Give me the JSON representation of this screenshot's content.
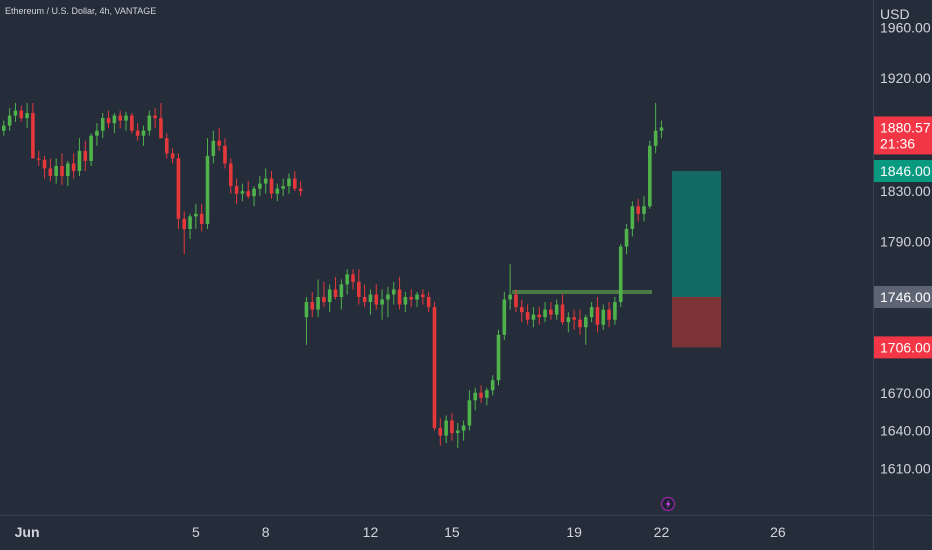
{
  "symbol": {
    "title": "Ethereum / U.S. Dollar, 4h, VANTAGE"
  },
  "price_axis": {
    "currency": "USD",
    "ticks": [
      {
        "label": "1960.00",
        "value": 1960
      },
      {
        "label": "1920.00",
        "value": 1920
      },
      {
        "label": "1830.00",
        "value": 1830
      },
      {
        "label": "1790.00",
        "value": 1790
      },
      {
        "label": "1670.00",
        "value": 1670
      },
      {
        "label": "1640.00",
        "value": 1640
      },
      {
        "label": "1610.00",
        "value": 1610
      }
    ],
    "current_price": {
      "label": "1880.57",
      "value": 1880.57,
      "countdown": "21:36",
      "color": "#f23645"
    },
    "target_price": {
      "label": "1846.00",
      "value": 1846,
      "color": "#089981"
    },
    "entry_price": {
      "label": "1746.00",
      "value": 1746,
      "color": "#5d6575"
    },
    "stop_price": {
      "label": "1706.00",
      "value": 1706,
      "color": "#f23645"
    }
  },
  "time_axis": {
    "labels": [
      {
        "label": "Jun",
        "bar": 4,
        "bold": true
      },
      {
        "label": "5",
        "bar": 33
      },
      {
        "label": "8",
        "bar": 45
      },
      {
        "label": "12",
        "bar": 63
      },
      {
        "label": "15",
        "bar": 77
      },
      {
        "label": "19",
        "bar": 98
      },
      {
        "label": "22",
        "bar": 113
      },
      {
        "label": "26",
        "bar": 133
      }
    ]
  },
  "position_tool": {
    "entry": 1746,
    "target": 1846,
    "stop": 1706,
    "profit_color": "#136a67",
    "loss_color": "#7c3437"
  },
  "horizontal_line": {
    "price": 1750,
    "from_bar": 88,
    "to_bar": 111,
    "color": "#4b7a45"
  },
  "colors": {
    "up": "#4fb24a",
    "down": "#e5383b",
    "background": "#252d3b",
    "axis_text": "#d1d4dc"
  },
  "icons": {
    "event_marker": "lightning-icon"
  },
  "chart_data": {
    "type": "candlestick",
    "timeframe": "4h",
    "bars": [
      {
        "o": 1878,
        "h": 1886,
        "l": 1874,
        "c": 1882
      },
      {
        "o": 1882,
        "h": 1896,
        "l": 1878,
        "c": 1890
      },
      {
        "o": 1890,
        "h": 1900,
        "l": 1885,
        "c": 1894
      },
      {
        "o": 1894,
        "h": 1898,
        "l": 1885,
        "c": 1888
      },
      {
        "o": 1888,
        "h": 1900,
        "l": 1880,
        "c": 1892
      },
      {
        "o": 1892,
        "h": 1900,
        "l": 1878,
        "c": 1856
      },
      {
        "o": 1856,
        "h": 1862,
        "l": 1850,
        "c": 1855
      },
      {
        "o": 1855,
        "h": 1858,
        "l": 1840,
        "c": 1848
      },
      {
        "o": 1848,
        "h": 1856,
        "l": 1838,
        "c": 1842
      },
      {
        "o": 1842,
        "h": 1856,
        "l": 1836,
        "c": 1850
      },
      {
        "o": 1850,
        "h": 1860,
        "l": 1835,
        "c": 1842
      },
      {
        "o": 1842,
        "h": 1854,
        "l": 1834,
        "c": 1852
      },
      {
        "o": 1852,
        "h": 1860,
        "l": 1840,
        "c": 1846
      },
      {
        "o": 1846,
        "h": 1872,
        "l": 1842,
        "c": 1862
      },
      {
        "o": 1862,
        "h": 1870,
        "l": 1846,
        "c": 1854
      },
      {
        "o": 1854,
        "h": 1876,
        "l": 1850,
        "c": 1874
      },
      {
        "o": 1874,
        "h": 1884,
        "l": 1866,
        "c": 1878
      },
      {
        "o": 1878,
        "h": 1892,
        "l": 1872,
        "c": 1888
      },
      {
        "o": 1888,
        "h": 1894,
        "l": 1880,
        "c": 1884
      },
      {
        "o": 1884,
        "h": 1892,
        "l": 1876,
        "c": 1890
      },
      {
        "o": 1890,
        "h": 1894,
        "l": 1880,
        "c": 1886
      },
      {
        "o": 1886,
        "h": 1893,
        "l": 1878,
        "c": 1890
      },
      {
        "o": 1890,
        "h": 1892,
        "l": 1876,
        "c": 1878
      },
      {
        "o": 1878,
        "h": 1884,
        "l": 1870,
        "c": 1874
      },
      {
        "o": 1874,
        "h": 1882,
        "l": 1866,
        "c": 1878
      },
      {
        "o": 1878,
        "h": 1894,
        "l": 1874,
        "c": 1890
      },
      {
        "o": 1890,
        "h": 1896,
        "l": 1880,
        "c": 1888
      },
      {
        "o": 1888,
        "h": 1900,
        "l": 1880,
        "c": 1872
      },
      {
        "o": 1872,
        "h": 1876,
        "l": 1856,
        "c": 1860
      },
      {
        "o": 1860,
        "h": 1864,
        "l": 1852,
        "c": 1856
      },
      {
        "o": 1856,
        "h": 1860,
        "l": 1800,
        "c": 1808
      },
      {
        "o": 1808,
        "h": 1814,
        "l": 1780,
        "c": 1800
      },
      {
        "o": 1800,
        "h": 1812,
        "l": 1792,
        "c": 1810
      },
      {
        "o": 1810,
        "h": 1820,
        "l": 1800,
        "c": 1812
      },
      {
        "o": 1812,
        "h": 1820,
        "l": 1798,
        "c": 1804
      },
      {
        "o": 1804,
        "h": 1872,
        "l": 1800,
        "c": 1858
      },
      {
        "o": 1858,
        "h": 1878,
        "l": 1852,
        "c": 1870
      },
      {
        "o": 1870,
        "h": 1880,
        "l": 1862,
        "c": 1866
      },
      {
        "o": 1866,
        "h": 1872,
        "l": 1848,
        "c": 1852
      },
      {
        "o": 1852,
        "h": 1856,
        "l": 1828,
        "c": 1834
      },
      {
        "o": 1834,
        "h": 1840,
        "l": 1820,
        "c": 1828
      },
      {
        "o": 1828,
        "h": 1836,
        "l": 1822,
        "c": 1830
      },
      {
        "o": 1830,
        "h": 1838,
        "l": 1824,
        "c": 1826
      },
      {
        "o": 1826,
        "h": 1834,
        "l": 1818,
        "c": 1832
      },
      {
        "o": 1832,
        "h": 1842,
        "l": 1826,
        "c": 1836
      },
      {
        "o": 1836,
        "h": 1848,
        "l": 1828,
        "c": 1840
      },
      {
        "o": 1840,
        "h": 1846,
        "l": 1824,
        "c": 1828
      },
      {
        "o": 1828,
        "h": 1836,
        "l": 1822,
        "c": 1832
      },
      {
        "o": 1832,
        "h": 1840,
        "l": 1826,
        "c": 1834
      },
      {
        "o": 1834,
        "h": 1844,
        "l": 1828,
        "c": 1840
      },
      {
        "o": 1840,
        "h": 1846,
        "l": 1830,
        "c": 1832
      },
      {
        "o": 1832,
        "h": 1838,
        "l": 1826,
        "c": 1830
      },
      {
        "o": 1730,
        "h": 1746,
        "l": 1708,
        "c": 1742
      },
      {
        "o": 1742,
        "h": 1750,
        "l": 1730,
        "c": 1736
      },
      {
        "o": 1736,
        "h": 1760,
        "l": 1730,
        "c": 1746
      },
      {
        "o": 1746,
        "h": 1758,
        "l": 1738,
        "c": 1742
      },
      {
        "o": 1742,
        "h": 1756,
        "l": 1734,
        "c": 1752
      },
      {
        "o": 1752,
        "h": 1762,
        "l": 1744,
        "c": 1746
      },
      {
        "o": 1746,
        "h": 1760,
        "l": 1736,
        "c": 1756
      },
      {
        "o": 1756,
        "h": 1768,
        "l": 1748,
        "c": 1764
      },
      {
        "o": 1764,
        "h": 1768,
        "l": 1752,
        "c": 1758
      },
      {
        "o": 1758,
        "h": 1768,
        "l": 1740,
        "c": 1746
      },
      {
        "o": 1746,
        "h": 1756,
        "l": 1738,
        "c": 1742
      },
      {
        "o": 1742,
        "h": 1752,
        "l": 1732,
        "c": 1748
      },
      {
        "o": 1748,
        "h": 1756,
        "l": 1736,
        "c": 1740
      },
      {
        "o": 1740,
        "h": 1752,
        "l": 1728,
        "c": 1744
      },
      {
        "o": 1744,
        "h": 1754,
        "l": 1730,
        "c": 1748
      },
      {
        "o": 1748,
        "h": 1758,
        "l": 1740,
        "c": 1752
      },
      {
        "o": 1752,
        "h": 1762,
        "l": 1736,
        "c": 1740
      },
      {
        "o": 1740,
        "h": 1750,
        "l": 1734,
        "c": 1746
      },
      {
        "o": 1746,
        "h": 1752,
        "l": 1738,
        "c": 1744
      },
      {
        "o": 1744,
        "h": 1750,
        "l": 1738,
        "c": 1748
      },
      {
        "o": 1748,
        "h": 1752,
        "l": 1740,
        "c": 1746
      },
      {
        "o": 1746,
        "h": 1750,
        "l": 1734,
        "c": 1738
      },
      {
        "o": 1738,
        "h": 1742,
        "l": 1640,
        "c": 1642
      },
      {
        "o": 1642,
        "h": 1650,
        "l": 1628,
        "c": 1636
      },
      {
        "o": 1636,
        "h": 1652,
        "l": 1630,
        "c": 1648
      },
      {
        "o": 1648,
        "h": 1654,
        "l": 1632,
        "c": 1638
      },
      {
        "o": 1638,
        "h": 1646,
        "l": 1626,
        "c": 1640
      },
      {
        "o": 1640,
        "h": 1648,
        "l": 1632,
        "c": 1644
      },
      {
        "o": 1644,
        "h": 1672,
        "l": 1640,
        "c": 1664
      },
      {
        "o": 1664,
        "h": 1674,
        "l": 1656,
        "c": 1670
      },
      {
        "o": 1670,
        "h": 1676,
        "l": 1662,
        "c": 1666
      },
      {
        "o": 1666,
        "h": 1674,
        "l": 1660,
        "c": 1672
      },
      {
        "o": 1672,
        "h": 1684,
        "l": 1668,
        "c": 1680
      },
      {
        "o": 1680,
        "h": 1720,
        "l": 1676,
        "c": 1716
      },
      {
        "o": 1716,
        "h": 1750,
        "l": 1712,
        "c": 1744
      },
      {
        "o": 1744,
        "h": 1772,
        "l": 1736,
        "c": 1748
      },
      {
        "o": 1748,
        "h": 1752,
        "l": 1734,
        "c": 1738
      },
      {
        "o": 1738,
        "h": 1744,
        "l": 1726,
        "c": 1734
      },
      {
        "o": 1734,
        "h": 1740,
        "l": 1724,
        "c": 1728
      },
      {
        "o": 1728,
        "h": 1738,
        "l": 1722,
        "c": 1732
      },
      {
        "o": 1732,
        "h": 1738,
        "l": 1724,
        "c": 1730
      },
      {
        "o": 1730,
        "h": 1742,
        "l": 1726,
        "c": 1736
      },
      {
        "o": 1736,
        "h": 1742,
        "l": 1728,
        "c": 1732
      },
      {
        "o": 1732,
        "h": 1744,
        "l": 1728,
        "c": 1740
      },
      {
        "o": 1740,
        "h": 1748,
        "l": 1724,
        "c": 1726
      },
      {
        "o": 1726,
        "h": 1734,
        "l": 1718,
        "c": 1730
      },
      {
        "o": 1730,
        "h": 1736,
        "l": 1720,
        "c": 1728
      },
      {
        "o": 1728,
        "h": 1736,
        "l": 1716,
        "c": 1722
      },
      {
        "o": 1722,
        "h": 1732,
        "l": 1708,
        "c": 1730
      },
      {
        "o": 1730,
        "h": 1742,
        "l": 1726,
        "c": 1738
      },
      {
        "o": 1738,
        "h": 1746,
        "l": 1718,
        "c": 1724
      },
      {
        "o": 1724,
        "h": 1740,
        "l": 1720,
        "c": 1736
      },
      {
        "o": 1736,
        "h": 1742,
        "l": 1722,
        "c": 1728
      },
      {
        "o": 1728,
        "h": 1746,
        "l": 1724,
        "c": 1742
      },
      {
        "o": 1742,
        "h": 1788,
        "l": 1738,
        "c": 1786
      },
      {
        "o": 1786,
        "h": 1804,
        "l": 1780,
        "c": 1800
      },
      {
        "o": 1800,
        "h": 1822,
        "l": 1794,
        "c": 1818
      },
      {
        "o": 1818,
        "h": 1824,
        "l": 1806,
        "c": 1812
      },
      {
        "o": 1812,
        "h": 1826,
        "l": 1806,
        "c": 1818
      },
      {
        "o": 1818,
        "h": 1870,
        "l": 1816,
        "c": 1866
      },
      {
        "o": 1866,
        "h": 1900,
        "l": 1860,
        "c": 1878
      },
      {
        "o": 1878,
        "h": 1886,
        "l": 1872,
        "c": 1880.57
      }
    ]
  }
}
